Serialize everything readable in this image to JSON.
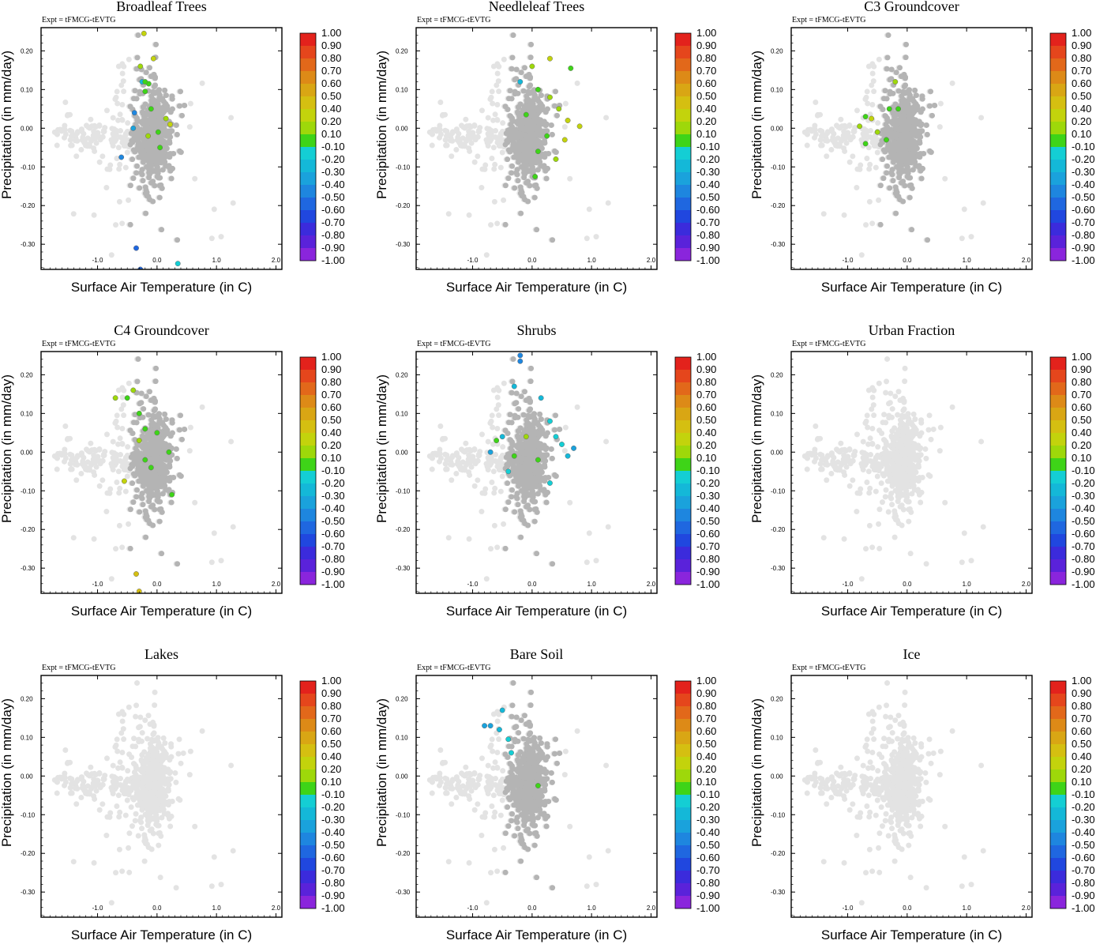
{
  "figure": {
    "experiment_label": "Expt = tFMCG-tEVTG"
  },
  "chart_data": {
    "type": "scatter",
    "xlabel": "Surface Air Temperature (in C)",
    "ylabel": "Precipitation (in mm/day)",
    "xlim": [
      -1.95,
      2.1
    ],
    "ylim": [
      -0.365,
      0.26
    ],
    "x_ticks": [
      -1.0,
      0.0,
      1.0,
      2.0
    ],
    "x_tick_labels": [
      "-1.0",
      "0.0",
      "1.0",
      "2.0"
    ],
    "y_ticks": [
      0.2,
      0.1,
      0.0,
      -0.1,
      -0.2,
      -0.3
    ],
    "y_tick_labels": [
      "0.20",
      "0.10",
      "0.00",
      "-0.10",
      "-0.20",
      "-0.30"
    ],
    "colorbar": {
      "labels": [
        "1.00",
        "0.90",
        "0.80",
        "0.70",
        "0.60",
        "0.50",
        "0.40",
        "0.20",
        "0.10",
        "-0.10",
        "-0.20",
        "-0.30",
        "-0.40",
        "-0.50",
        "-0.60",
        "-0.70",
        "-0.80",
        "-0.90",
        "-1.00"
      ],
      "colors": [
        "#e3221c",
        "#e5461c",
        "#e2681a",
        "#dd8a17",
        "#d9a614",
        "#d5bf11",
        "#c3d30c",
        "#9ed80a",
        "#3ed418",
        "#b4b4b4",
        "#14ced4",
        "#14b8d8",
        "#1aa2dc",
        "#1e86df",
        "#1f67e0",
        "#2047df",
        "#3b2bdc",
        "#5a22da",
        "#8a25dc"
      ]
    },
    "panels": [
      {
        "title": "Broadleaf Trees",
        "group": "C",
        "highlight": [
          {
            "x": -0.22,
            "y": 0.245,
            "c": "#c3d30c"
          },
          {
            "x": -0.28,
            "y": 0.16,
            "c": "#9ed80a"
          },
          {
            "x": -0.06,
            "y": 0.18,
            "c": "#c3d30c"
          },
          {
            "x": -0.14,
            "y": 0.115,
            "c": "#3ed418"
          },
          {
            "x": -0.2,
            "y": 0.095,
            "c": "#3ed418"
          },
          {
            "x": -0.1,
            "y": 0.05,
            "c": "#3ed418"
          },
          {
            "x": 0.15,
            "y": 0.025,
            "c": "#9ed80a"
          },
          {
            "x": 0.22,
            "y": 0.01,
            "c": "#c3d30c"
          },
          {
            "x": 0.02,
            "y": -0.01,
            "c": "#3ed418"
          },
          {
            "x": -0.15,
            "y": -0.02,
            "c": "#9ed80a"
          },
          {
            "x": 0.05,
            "y": -0.05,
            "c": "#3ed418"
          },
          {
            "x": -0.38,
            "y": 0.04,
            "c": "#1e86df"
          },
          {
            "x": -0.4,
            "y": 0.0,
            "c": "#1aa2dc"
          },
          {
            "x": -0.6,
            "y": -0.075,
            "c": "#1e86df"
          },
          {
            "x": -0.25,
            "y": 0.12,
            "c": "#14b8d8"
          },
          {
            "x": -0.35,
            "y": -0.31,
            "c": "#1f67e0"
          },
          {
            "x": -0.28,
            "y": -0.365,
            "c": "#1f67e0"
          },
          {
            "x": 0.35,
            "y": -0.35,
            "c": "#14ced4"
          },
          {
            "x": -0.2,
            "y": 0.12,
            "c": "#3ed418"
          }
        ]
      },
      {
        "title": "Needleleaf Trees",
        "group": "C",
        "highlight": [
          {
            "x": 0.1,
            "y": 0.1,
            "c": "#3ed418"
          },
          {
            "x": 0.0,
            "y": 0.16,
            "c": "#9ed80a"
          },
          {
            "x": 0.3,
            "y": 0.08,
            "c": "#9ed80a"
          },
          {
            "x": 0.45,
            "y": 0.05,
            "c": "#9ed80a"
          },
          {
            "x": 0.6,
            "y": 0.02,
            "c": "#c3d30c"
          },
          {
            "x": 0.8,
            "y": 0.005,
            "c": "#c3d30c"
          },
          {
            "x": 0.65,
            "y": 0.155,
            "c": "#3ed418"
          },
          {
            "x": -0.1,
            "y": 0.035,
            "c": "#3ed418"
          },
          {
            "x": 0.25,
            "y": -0.02,
            "c": "#3ed418"
          },
          {
            "x": 0.1,
            "y": -0.06,
            "c": "#3ed418"
          },
          {
            "x": 0.4,
            "y": -0.08,
            "c": "#9ed80a"
          },
          {
            "x": 0.05,
            "y": -0.125,
            "c": "#3ed418"
          },
          {
            "x": 0.55,
            "y": -0.03,
            "c": "#c3d30c"
          },
          {
            "x": -0.2,
            "y": 0.12,
            "c": "#14b8d8"
          },
          {
            "x": 0.3,
            "y": 0.18,
            "c": "#c3d30c"
          }
        ]
      },
      {
        "title": "C3 Groundcover",
        "group": "C",
        "highlight": [
          {
            "x": -0.7,
            "y": 0.03,
            "c": "#3ed418"
          },
          {
            "x": -0.8,
            "y": 0.005,
            "c": "#9ed80a"
          },
          {
            "x": -0.5,
            "y": -0.01,
            "c": "#9ed80a"
          },
          {
            "x": -0.3,
            "y": 0.05,
            "c": "#3ed418"
          },
          {
            "x": -0.2,
            "y": 0.12,
            "c": "#9ed80a"
          },
          {
            "x": -0.35,
            "y": -0.03,
            "c": "#3ed418"
          },
          {
            "x": -0.7,
            "y": -0.04,
            "c": "#3ed418"
          },
          {
            "x": -0.6,
            "y": 0.025,
            "c": "#c3d30c"
          },
          {
            "x": -0.15,
            "y": 0.05,
            "c": "#3ed418"
          }
        ]
      },
      {
        "title": "C4 Groundcover",
        "group": "C",
        "highlight": [
          {
            "x": -0.7,
            "y": 0.14,
            "c": "#9ed80a"
          },
          {
            "x": -0.5,
            "y": 0.14,
            "c": "#3ed418"
          },
          {
            "x": -0.3,
            "y": 0.1,
            "c": "#3ed418"
          },
          {
            "x": -0.2,
            "y": 0.06,
            "c": "#3ed418"
          },
          {
            "x": 0.0,
            "y": 0.05,
            "c": "#3ed418"
          },
          {
            "x": -0.3,
            "y": 0.03,
            "c": "#9ed80a"
          },
          {
            "x": -0.2,
            "y": -0.02,
            "c": "#3ed418"
          },
          {
            "x": -0.1,
            "y": -0.04,
            "c": "#3ed418"
          },
          {
            "x": 0.2,
            "y": 0.0,
            "c": "#3ed418"
          },
          {
            "x": -0.55,
            "y": -0.075,
            "c": "#c3d30c"
          },
          {
            "x": -0.35,
            "y": -0.315,
            "c": "#d5bf11"
          },
          {
            "x": -0.3,
            "y": -0.36,
            "c": "#d5bf11"
          },
          {
            "x": 0.25,
            "y": -0.11,
            "c": "#3ed418"
          },
          {
            "x": -0.4,
            "y": 0.16,
            "c": "#9ed80a"
          }
        ]
      },
      {
        "title": "Shrubs",
        "group": "C",
        "highlight": [
          {
            "x": -0.2,
            "y": 0.25,
            "c": "#1e86df"
          },
          {
            "x": -0.2,
            "y": 0.235,
            "c": "#1e86df"
          },
          {
            "x": -0.3,
            "y": 0.17,
            "c": "#14b8d8"
          },
          {
            "x": 0.15,
            "y": 0.14,
            "c": "#14b8d8"
          },
          {
            "x": 0.3,
            "y": 0.08,
            "c": "#14ced4"
          },
          {
            "x": 0.4,
            "y": 0.04,
            "c": "#14ced4"
          },
          {
            "x": 0.5,
            "y": 0.02,
            "c": "#14ced4"
          },
          {
            "x": 0.6,
            "y": -0.01,
            "c": "#14b8d8"
          },
          {
            "x": 0.7,
            "y": 0.01,
            "c": "#1aa2dc"
          },
          {
            "x": -0.5,
            "y": 0.04,
            "c": "#14b8d8"
          },
          {
            "x": -0.7,
            "y": 0.0,
            "c": "#1aa2dc"
          },
          {
            "x": -0.4,
            "y": -0.05,
            "c": "#14ced4"
          },
          {
            "x": 0.3,
            "y": -0.08,
            "c": "#14ced4"
          },
          {
            "x": -0.6,
            "y": 0.03,
            "c": "#3ed418"
          },
          {
            "x": -0.3,
            "y": -0.01,
            "c": "#3ed418"
          },
          {
            "x": 0.1,
            "y": -0.02,
            "c": "#3ed418"
          },
          {
            "x": -0.1,
            "y": 0.04,
            "c": "#9ed80a"
          }
        ]
      },
      {
        "title": "Urban Fraction",
        "group": "L",
        "highlight": []
      },
      {
        "title": "Lakes",
        "group": "L",
        "highlight": []
      },
      {
        "title": "Bare Soil",
        "group": "C",
        "highlight": [
          {
            "x": -0.5,
            "y": 0.17,
            "c": "#14b8d8"
          },
          {
            "x": -0.8,
            "y": 0.13,
            "c": "#1aa2dc"
          },
          {
            "x": -0.7,
            "y": 0.13,
            "c": "#1aa2dc"
          },
          {
            "x": -0.55,
            "y": 0.12,
            "c": "#14b8d8"
          },
          {
            "x": -0.4,
            "y": 0.095,
            "c": "#14ced4"
          },
          {
            "x": -0.35,
            "y": 0.06,
            "c": "#14ced4"
          },
          {
            "x": 0.1,
            "y": -0.025,
            "c": "#3ed418"
          }
        ]
      },
      {
        "title": "Ice",
        "group": "L",
        "highlight": []
      }
    ]
  }
}
